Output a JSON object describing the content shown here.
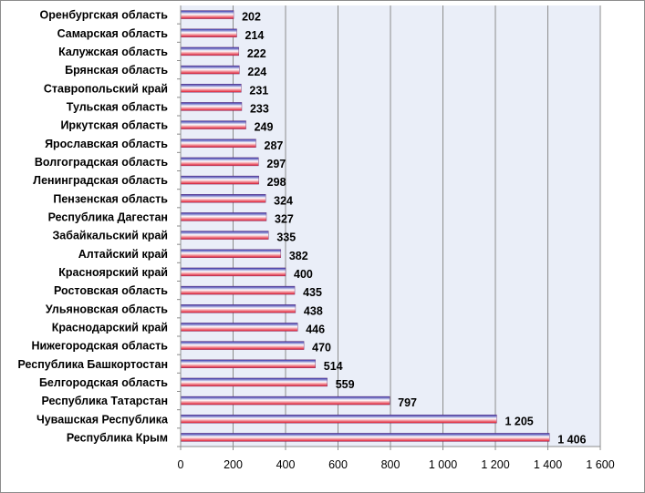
{
  "chart_data": {
    "type": "bar",
    "orientation": "horizontal",
    "categories": [
      "Оренбургская область",
      "Самарская область",
      "Калужская область",
      "Брянская область",
      "Ставропольский край",
      "Тульская область",
      "Иркутская область",
      "Ярославская область",
      "Волгоградская область",
      "Ленинградская область",
      "Пензенская область",
      "Республика Дагестан",
      "Забайкальский край",
      "Алтайский край",
      "Красноярский край",
      "Ростовская область",
      "Ульяновская область",
      "Краснодарский край",
      "Нижегородская область",
      "Республика Башкортостан",
      "Белгородская область",
      "Республика Татарстан",
      "Чувашская Республика",
      "Республика Крым"
    ],
    "values": [
      202,
      214,
      222,
      224,
      231,
      233,
      249,
      287,
      297,
      298,
      324,
      327,
      335,
      382,
      400,
      435,
      438,
      446,
      470,
      514,
      559,
      797,
      1205,
      1406
    ],
    "value_labels": [
      "202",
      "214",
      "222",
      "224",
      "231",
      "233",
      "249",
      "287",
      "297",
      "298",
      "324",
      "327",
      "335",
      "382",
      "400",
      "435",
      "438",
      "446",
      "470",
      "514",
      "559",
      "797",
      "1 205",
      "1 406"
    ],
    "xlim": [
      0,
      1600
    ],
    "x_ticks": [
      0,
      200,
      400,
      600,
      800,
      1000,
      1200,
      1400,
      1600
    ],
    "x_tick_labels": [
      "0",
      "200",
      "400",
      "600",
      "800",
      "1 000",
      "1 200",
      "1 400",
      "1 600"
    ],
    "title": "",
    "xlabel": "",
    "ylabel": "",
    "grid": "vertical",
    "legend": "none",
    "colors": {
      "plot_background": "#eaeef8",
      "gridline": "#8c8c8c",
      "bar_top": "#2e2ea8",
      "bar_mid": "#ffffff",
      "bar_bottom": "#e0152a"
    }
  }
}
